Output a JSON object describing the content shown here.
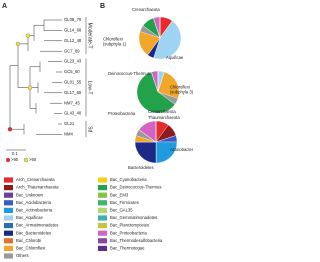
{
  "panel_a": {
    "label": "A",
    "leaves": [
      "GL08_70",
      "GL14_68",
      "GL12_48",
      "GC7_89",
      "GL23_43",
      "GC5_60",
      "GL01_55",
      "GL17_65",
      "NM7_45",
      "GL43_40",
      "GL21",
      "NM4"
    ],
    "groups": [
      "Moderate-T",
      "Low-T",
      "Sd"
    ],
    "scale": "0.1",
    "support": [
      ">90",
      ">50"
    ]
  },
  "panel_b": {
    "label": "B"
  },
  "legend": {
    "items": [
      {
        "name": "Arch_Crenarchaeota",
        "color": "#e52b2b"
      },
      {
        "name": "Arch_Thaumarchaeota",
        "color": "#8e1b1b"
      },
      {
        "name": "Bac_Unknown",
        "color": "#6a3fa0"
      },
      {
        "name": "Bac_Acidobacteria",
        "color": "#3b5bc4"
      },
      {
        "name": "Bac_Actinobacteria",
        "color": "#1f9be0"
      },
      {
        "name": "Bac_Aquificae",
        "color": "#9fd3f2"
      },
      {
        "name": "Bac_Armatimonadetes",
        "color": "#2b6fa8"
      },
      {
        "name": "Bac_Bacteroidetes",
        "color": "#1b2a86"
      },
      {
        "name": "Bac_Chlorobi",
        "color": "#e0742a"
      },
      {
        "name": "Bac_Chloroflexi",
        "color": "#f2a62a"
      },
      {
        "name": "Others",
        "color": "#9a9a9a"
      },
      {
        "name": "Bac_Cyanobacteria",
        "color": "#f5d21a"
      },
      {
        "name": "Bac_Deinococcus-Thermus",
        "color": "#22a24a"
      },
      {
        "name": "Bac_EM3",
        "color": "#86c443"
      },
      {
        "name": "Bac_Firmicutes",
        "color": "#3fb46a"
      },
      {
        "name": "Bac_GAL35",
        "color": "#b1d86a"
      },
      {
        "name": "Bac_Gemmatimonadetes",
        "color": "#3fb0b0"
      },
      {
        "name": "Bac_Planctomycetes",
        "color": "#c7c43f"
      },
      {
        "name": "Bac_Proteobacteria",
        "color": "#d463c2"
      },
      {
        "name": "Bac_Thermodesulfobacteria",
        "color": "#8a45a8"
      },
      {
        "name": "Bac_Thermotogae",
        "color": "#5e2f86"
      }
    ]
  },
  "chart_data": [
    {
      "type": "pie",
      "values": [
        10,
        0,
        0,
        0,
        0,
        45,
        0,
        5,
        0,
        20,
        5,
        0,
        10,
        0,
        0,
        0,
        0,
        0,
        5,
        0,
        0
      ],
      "annotations": [
        "Crenarchaeota",
        "Chloroflexi\n(subphyla 1)",
        "Aquificae"
      ]
    },
    {
      "type": "pie",
      "values": [
        0,
        0,
        0,
        0,
        0,
        5,
        0,
        0,
        0,
        25,
        5,
        0,
        60,
        0,
        0,
        0,
        0,
        0,
        5,
        0,
        0
      ],
      "annotations": [
        "Deinococcus-Thermus",
        "Chloroflexi\n(subphyla 3)"
      ]
    },
    {
      "type": "pie",
      "values": [
        10,
        10,
        0,
        5,
        25,
        0,
        0,
        25,
        0,
        5,
        5,
        0,
        0,
        0,
        0,
        0,
        0,
        0,
        15,
        0,
        0
      ],
      "annotations": [
        "Proteobacteria",
        "Crenarchaeota",
        "Thaumarchaeota",
        "Actinobacteria",
        "Bacteroidetes"
      ]
    }
  ]
}
